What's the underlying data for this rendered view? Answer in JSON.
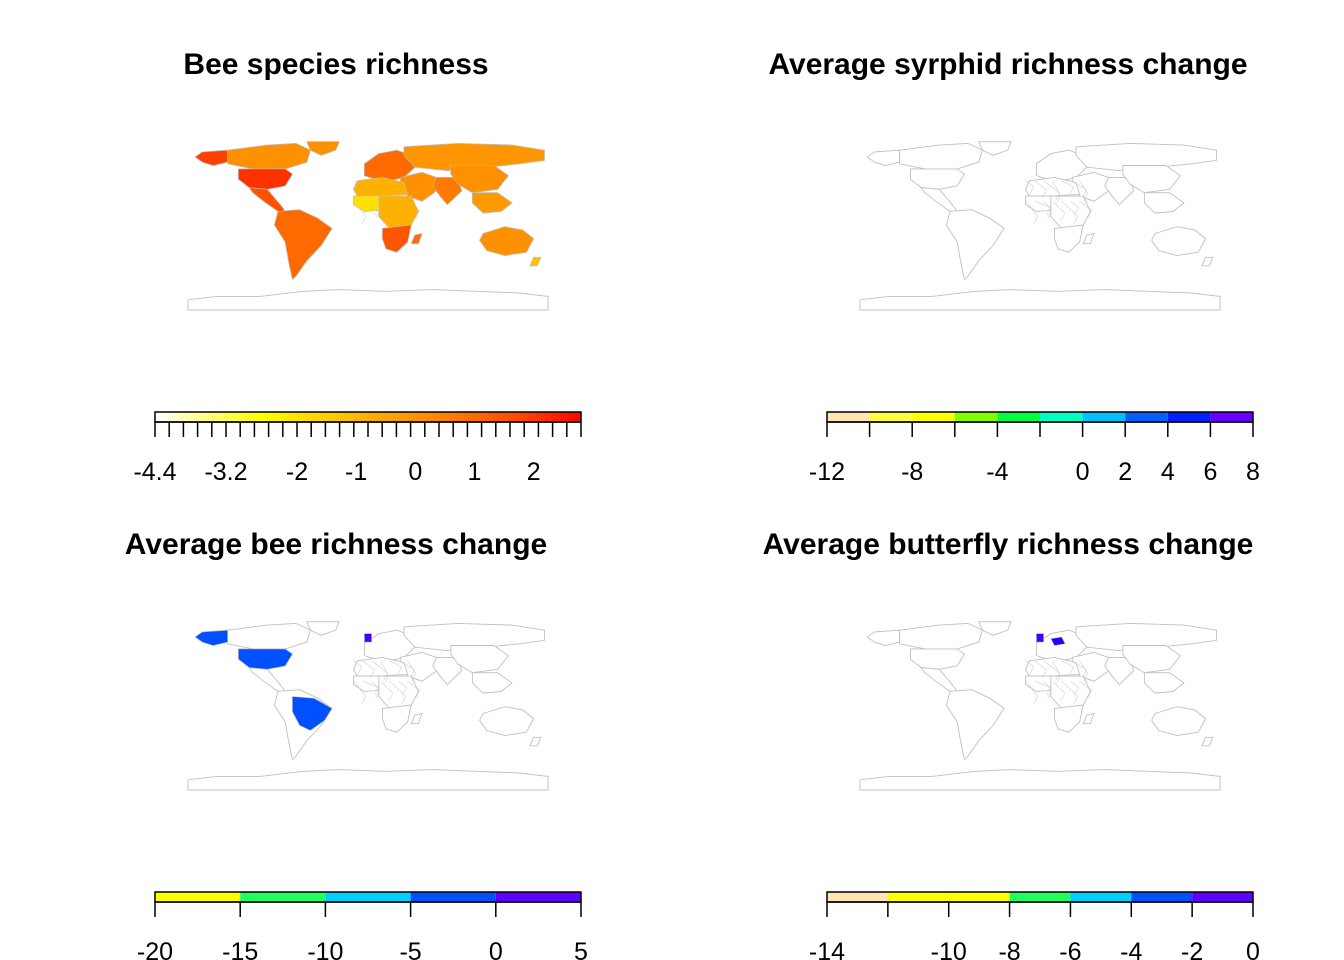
{
  "panels": [
    {
      "id": "bee-species-richness",
      "title": "Bee species richness",
      "legend": {
        "type": "continuous",
        "range": [
          -4.4,
          2.8
        ],
        "colors": [
          "#ffffff",
          "#ffff80",
          "#ffff00",
          "#ffd700",
          "#ffb000",
          "#ff9000",
          "#ff6a00",
          "#ff4000",
          "#ff0000"
        ],
        "tick_labels": [
          "-4.4",
          "-3.2",
          "-2",
          "-1",
          "0",
          "1",
          "2"
        ],
        "tick_values": [
          -4.4,
          -3.2,
          -2,
          -1,
          0,
          1,
          2
        ],
        "minor_ticks": 30
      },
      "highlighted": [
        {
          "region": "alaska",
          "color": "#ff4000"
        },
        {
          "region": "canada",
          "color": "#ff9000"
        },
        {
          "region": "greenland",
          "color": "#ff9000"
        },
        {
          "region": "usa",
          "color": "#ff3000"
        },
        {
          "region": "mexico-central-america",
          "color": "#ff5000"
        },
        {
          "region": "south-america",
          "color": "#ff6a00"
        },
        {
          "region": "europe",
          "color": "#ff6a00"
        },
        {
          "region": "russia-north-asia",
          "color": "#ff9500"
        },
        {
          "region": "middle-east",
          "color": "#ff9000"
        },
        {
          "region": "north-africa",
          "color": "#ffb000"
        },
        {
          "region": "sahel",
          "color": "#ffe000"
        },
        {
          "region": "central-africa",
          "color": "#ffb000"
        },
        {
          "region": "southern-africa",
          "color": "#ff5500"
        },
        {
          "region": "madagascar",
          "color": "#ff6a00"
        },
        {
          "region": "south-asia",
          "color": "#ff7a00"
        },
        {
          "region": "east-asia",
          "color": "#ff9000"
        },
        {
          "region": "southeast-asia",
          "color": "#ff9a00"
        },
        {
          "region": "australia",
          "color": "#ff9000"
        },
        {
          "region": "new-zealand",
          "color": "#ffc000"
        }
      ]
    },
    {
      "id": "avg-syrphid-richness-change",
      "title": "Average syrphid richness change",
      "legend": {
        "type": "discrete",
        "range": [
          -12,
          8
        ],
        "breaks": [
          -12,
          -10,
          -8,
          -6,
          -4,
          -2,
          0,
          2,
          4,
          6,
          8
        ],
        "colors": [
          "#ffe4b5",
          "#ffff40",
          "#ffff00",
          "#80ff00",
          "#00ff40",
          "#00ffc0",
          "#00bfff",
          "#0060ff",
          "#0020ff",
          "#6a00ff"
        ],
        "tick_labels": [
          "-12",
          "-8",
          "-4",
          "0",
          "2",
          "4",
          "6",
          "8"
        ],
        "tick_values": [
          -12,
          -8,
          -4,
          0,
          2,
          4,
          6,
          8
        ]
      },
      "highlighted": []
    },
    {
      "id": "avg-bee-richness-change",
      "title": "Average bee richness change",
      "legend": {
        "type": "discrete",
        "range": [
          -20,
          5
        ],
        "breaks": [
          -20,
          -15,
          -10,
          -5,
          0,
          5
        ],
        "colors": [
          "#ffff00",
          "#20ff60",
          "#00d0ff",
          "#0050ff",
          "#6000ff"
        ],
        "tick_labels": [
          "-20",
          "-15",
          "-10",
          "-5",
          "0",
          "5"
        ],
        "tick_values": [
          -20,
          -15,
          -10,
          -5,
          0,
          5
        ]
      },
      "highlighted": [
        {
          "region": "alaska",
          "color": "#0050ff"
        },
        {
          "region": "usa",
          "color": "#0050ff"
        },
        {
          "region": "brazil",
          "color": "#0050ff"
        },
        {
          "region": "uk",
          "color": "#4000ff"
        }
      ]
    },
    {
      "id": "avg-butterfly-richness-change",
      "title": "Average butterfly richness change",
      "legend": {
        "type": "discrete",
        "range": [
          -14,
          0
        ],
        "breaks": [
          -14,
          -12,
          -10,
          -8,
          -6,
          -4,
          -2,
          0
        ],
        "colors": [
          "#ffe4b5",
          "#ffff00",
          "#ffff00",
          "#20ff60",
          "#00d0ff",
          "#0050ff",
          "#6000ff"
        ],
        "tick_labels": [
          "-14",
          "-10",
          "-8",
          "-6",
          "-4",
          "-2",
          "0"
        ],
        "tick_values": [
          -14,
          -10,
          -8,
          -6,
          -4,
          -2,
          0
        ]
      },
      "highlighted": [
        {
          "region": "uk",
          "color": "#4000ff"
        },
        {
          "region": "central-europe",
          "color": "#2000ff"
        }
      ]
    }
  ]
}
